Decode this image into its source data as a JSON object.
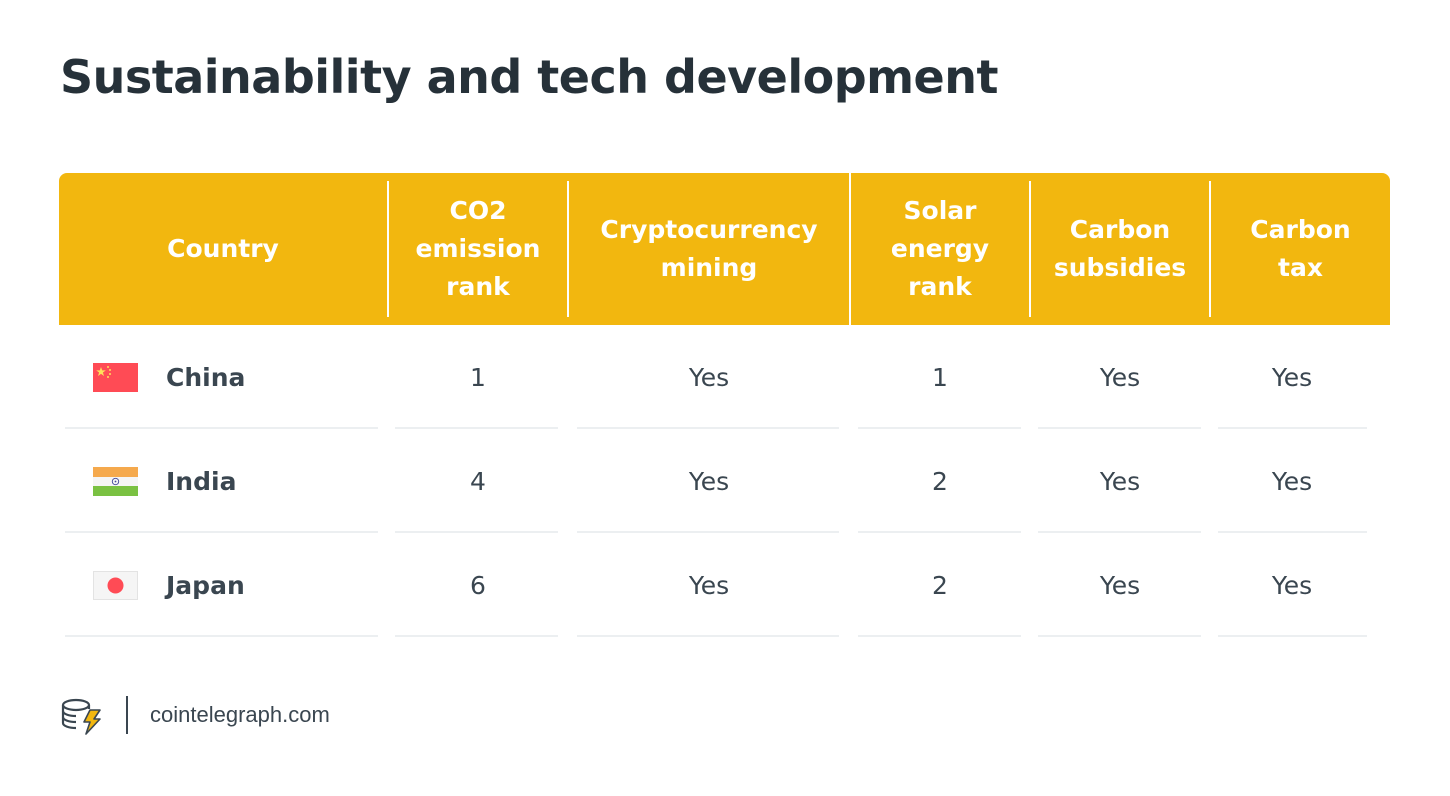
{
  "title": "Sustainability and tech development",
  "chart_data": {
    "type": "table",
    "columns": [
      "Country",
      "CO2\nemission\nrank",
      "Cryptocurrency\nmining",
      "Solar\nenergy\nrank",
      "Carbon\nsubsidies",
      "Carbon\ntax"
    ],
    "rows": [
      {
        "country": "China",
        "flag_icon": "china-flag-icon",
        "co2_rank": "1",
        "crypto_mining": "Yes",
        "solar_rank": "1",
        "carbon_subsidies": "Yes",
        "carbon_tax": "Yes"
      },
      {
        "country": "India",
        "flag_icon": "india-flag-icon",
        "co2_rank": "4",
        "crypto_mining": "Yes",
        "solar_rank": "2",
        "carbon_subsidies": "Yes",
        "carbon_tax": "Yes"
      },
      {
        "country": "Japan",
        "flag_icon": "japan-flag-icon",
        "co2_rank": "6",
        "crypto_mining": "Yes",
        "solar_rank": "2",
        "carbon_subsidies": "Yes",
        "carbon_tax": "Yes"
      }
    ]
  },
  "colors": {
    "header_background": "#f2b70f",
    "header_text": "#ffffff",
    "title_text": "#263139",
    "body_text": "#3a4650",
    "row_line": "#eceff1"
  },
  "footer": {
    "logo_icon": "cointelegraph-logo-icon",
    "site": "cointelegraph.com"
  }
}
